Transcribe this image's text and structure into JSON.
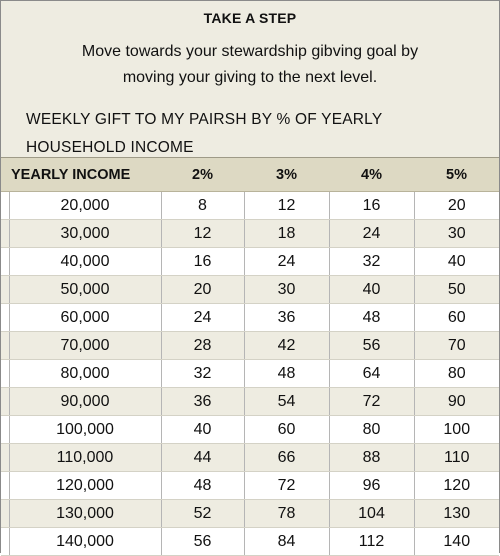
{
  "header": {
    "title": "TAKE A STEP",
    "intro_line1": "Move towards your stewardship gibving goal by",
    "intro_line2": "moving your giving to the next level.",
    "subtitle_line1": "WEEKLY GIFT TO MY PAIRSH BY % OF YEARLY",
    "subtitle_line2": "HOUSEHOLD INCOME"
  },
  "table": {
    "columns": [
      "YEARLY INCOME",
      "2%",
      "3%",
      "4%",
      "5%"
    ],
    "rows": [
      [
        "20,000",
        "8",
        "12",
        "16",
        "20"
      ],
      [
        "30,000",
        "12",
        "18",
        "24",
        "30"
      ],
      [
        "40,000",
        "16",
        "24",
        "32",
        "40"
      ],
      [
        "50,000",
        "20",
        "30",
        "40",
        "50"
      ],
      [
        "60,000",
        "24",
        "36",
        "48",
        "60"
      ],
      [
        "70,000",
        "28",
        "42",
        "56",
        "70"
      ],
      [
        "80,000",
        "32",
        "48",
        "64",
        "80"
      ],
      [
        "90,000",
        "36",
        "54",
        "72",
        "90"
      ],
      [
        "100,000",
        "40",
        "60",
        "80",
        "100"
      ],
      [
        "110,000",
        "44",
        "66",
        "88",
        "110"
      ],
      [
        "120,000",
        "48",
        "72",
        "96",
        "120"
      ],
      [
        "130,000",
        "52",
        "78",
        "104",
        "130"
      ],
      [
        "140,000",
        "56",
        "84",
        "112",
        "140"
      ]
    ]
  },
  "colors": {
    "header_background": "#eeece1",
    "column_header_background": "#ddd9c3",
    "alternate_row_background": "#eeece1"
  }
}
